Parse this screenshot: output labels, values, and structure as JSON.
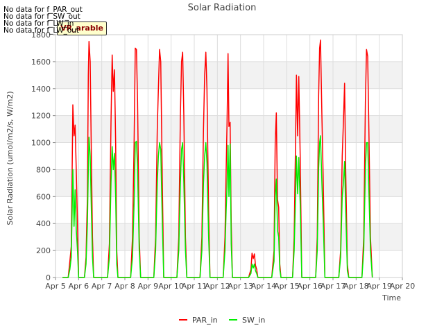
{
  "chart_data": {
    "type": "line",
    "title": "Solar Radiation",
    "xlabel": "Time",
    "ylabel": "Solar Radiation (umol/m2/s, W/m2)",
    "xlim": [
      5,
      20
    ],
    "ylim": [
      0,
      1800
    ],
    "x_ticks": [
      "Apr 5",
      "Apr 6",
      "Apr 7",
      "Apr 8",
      "Apr 9",
      "Apr 10",
      "Apr 11",
      "Apr 12",
      "Apr 13",
      "Apr 14",
      "Apr 15",
      "Apr 16",
      "Apr 17",
      "Apr 18",
      "Apr 19",
      "Apr 20"
    ],
    "y_ticks": [
      0,
      200,
      400,
      600,
      800,
      1000,
      1200,
      1400,
      1600,
      1800
    ],
    "grid": true,
    "legend_position": "bottom-center",
    "series": [
      {
        "name": "PAR_in",
        "color": "#ff0000",
        "points": [
          [
            5.3,
            0
          ],
          [
            5.55,
            0
          ],
          [
            5.62,
            120
          ],
          [
            5.68,
            230
          ],
          [
            5.72,
            800
          ],
          [
            5.75,
            1280
          ],
          [
            5.8,
            1050
          ],
          [
            5.85,
            1130
          ],
          [
            5.9,
            780
          ],
          [
            5.95,
            400
          ],
          [
            6.0,
            0
          ],
          [
            6.25,
            0
          ],
          [
            6.32,
            150
          ],
          [
            6.38,
            600
          ],
          [
            6.42,
            1500
          ],
          [
            6.45,
            1750
          ],
          [
            6.5,
            1600
          ],
          [
            6.55,
            900
          ],
          [
            6.6,
            300
          ],
          [
            6.65,
            0
          ],
          [
            7.25,
            0
          ],
          [
            7.33,
            250
          ],
          [
            7.4,
            1150
          ],
          [
            7.45,
            1650
          ],
          [
            7.5,
            1380
          ],
          [
            7.55,
            1540
          ],
          [
            7.6,
            1000
          ],
          [
            7.65,
            200
          ],
          [
            7.7,
            0
          ],
          [
            8.25,
            0
          ],
          [
            8.33,
            300
          ],
          [
            8.4,
            1000
          ],
          [
            8.45,
            1700
          ],
          [
            8.5,
            1690
          ],
          [
            8.55,
            1300
          ],
          [
            8.62,
            300
          ],
          [
            8.68,
            0
          ],
          [
            9.25,
            0
          ],
          [
            9.33,
            300
          ],
          [
            9.4,
            1100
          ],
          [
            9.45,
            1400
          ],
          [
            9.5,
            1690
          ],
          [
            9.55,
            1600
          ],
          [
            9.62,
            700
          ],
          [
            9.68,
            0
          ],
          [
            10.25,
            0
          ],
          [
            10.33,
            300
          ],
          [
            10.4,
            1200
          ],
          [
            10.45,
            1600
          ],
          [
            10.5,
            1670
          ],
          [
            10.55,
            1200
          ],
          [
            10.62,
            300
          ],
          [
            10.68,
            0
          ],
          [
            11.25,
            0
          ],
          [
            11.33,
            300
          ],
          [
            11.4,
            1100
          ],
          [
            11.45,
            1500
          ],
          [
            11.5,
            1670
          ],
          [
            11.55,
            1400
          ],
          [
            11.62,
            500
          ],
          [
            11.68,
            0
          ],
          [
            12.25,
            0
          ],
          [
            12.33,
            300
          ],
          [
            12.38,
            800
          ],
          [
            12.42,
            1150
          ],
          [
            12.46,
            1660
          ],
          [
            12.5,
            1120
          ],
          [
            12.55,
            1150
          ],
          [
            12.6,
            400
          ],
          [
            12.65,
            0
          ],
          [
            13.35,
            0
          ],
          [
            13.45,
            60
          ],
          [
            13.5,
            180
          ],
          [
            13.55,
            140
          ],
          [
            13.6,
            175
          ],
          [
            13.65,
            90
          ],
          [
            13.7,
            60
          ],
          [
            13.75,
            0
          ],
          [
            14.35,
            0
          ],
          [
            14.45,
            200
          ],
          [
            14.5,
            1000
          ],
          [
            14.55,
            1220
          ],
          [
            14.6,
            580
          ],
          [
            14.65,
            520
          ],
          [
            14.7,
            100
          ],
          [
            14.75,
            0
          ],
          [
            15.25,
            0
          ],
          [
            15.32,
            300
          ],
          [
            15.38,
            1000
          ],
          [
            15.42,
            1500
          ],
          [
            15.47,
            1050
          ],
          [
            15.52,
            1490
          ],
          [
            15.58,
            900
          ],
          [
            15.65,
            0
          ],
          [
            16.25,
            0
          ],
          [
            16.32,
            300
          ],
          [
            16.38,
            1350
          ],
          [
            16.42,
            1700
          ],
          [
            16.46,
            1760
          ],
          [
            16.52,
            1200
          ],
          [
            16.58,
            700
          ],
          [
            16.65,
            0
          ],
          [
            17.25,
            0
          ],
          [
            17.33,
            200
          ],
          [
            17.4,
            900
          ],
          [
            17.45,
            1150
          ],
          [
            17.5,
            1440
          ],
          [
            17.55,
            800
          ],
          [
            17.62,
            100
          ],
          [
            17.68,
            0
          ],
          [
            18.25,
            0
          ],
          [
            18.33,
            300
          ],
          [
            18.4,
            1300
          ],
          [
            18.45,
            1690
          ],
          [
            18.5,
            1640
          ],
          [
            18.55,
            1100
          ],
          [
            18.62,
            300
          ],
          [
            18.7,
            0
          ]
        ]
      },
      {
        "name": "SW_in",
        "color": "#00ee00",
        "points": [
          [
            5.3,
            0
          ],
          [
            5.55,
            0
          ],
          [
            5.62,
            60
          ],
          [
            5.68,
            150
          ],
          [
            5.72,
            500
          ],
          [
            5.75,
            800
          ],
          [
            5.8,
            380
          ],
          [
            5.85,
            650
          ],
          [
            5.9,
            350
          ],
          [
            5.95,
            200
          ],
          [
            6.0,
            0
          ],
          [
            6.25,
            0
          ],
          [
            6.32,
            100
          ],
          [
            6.38,
            400
          ],
          [
            6.42,
            800
          ],
          [
            6.45,
            1040
          ],
          [
            6.5,
            900
          ],
          [
            6.55,
            500
          ],
          [
            6.6,
            150
          ],
          [
            6.65,
            0
          ],
          [
            7.25,
            0
          ],
          [
            7.33,
            150
          ],
          [
            7.4,
            700
          ],
          [
            7.45,
            970
          ],
          [
            7.5,
            800
          ],
          [
            7.55,
            920
          ],
          [
            7.6,
            600
          ],
          [
            7.65,
            100
          ],
          [
            7.7,
            0
          ],
          [
            8.25,
            0
          ],
          [
            8.33,
            150
          ],
          [
            8.4,
            550
          ],
          [
            8.45,
            1000
          ],
          [
            8.5,
            1010
          ],
          [
            8.55,
            800
          ],
          [
            8.62,
            200
          ],
          [
            8.68,
            0
          ],
          [
            9.25,
            0
          ],
          [
            9.33,
            200
          ],
          [
            9.4,
            700
          ],
          [
            9.45,
            900
          ],
          [
            9.5,
            1000
          ],
          [
            9.55,
            950
          ],
          [
            9.62,
            400
          ],
          [
            9.68,
            0
          ],
          [
            10.25,
            0
          ],
          [
            10.33,
            200
          ],
          [
            10.4,
            700
          ],
          [
            10.45,
            950
          ],
          [
            10.5,
            1000
          ],
          [
            10.55,
            700
          ],
          [
            10.62,
            200
          ],
          [
            10.68,
            0
          ],
          [
            11.25,
            0
          ],
          [
            11.33,
            200
          ],
          [
            11.4,
            700
          ],
          [
            11.45,
            900
          ],
          [
            11.5,
            1000
          ],
          [
            11.55,
            850
          ],
          [
            11.62,
            300
          ],
          [
            11.68,
            0
          ],
          [
            12.25,
            0
          ],
          [
            12.33,
            200
          ],
          [
            12.38,
            500
          ],
          [
            12.42,
            680
          ],
          [
            12.46,
            980
          ],
          [
            12.5,
            600
          ],
          [
            12.55,
            990
          ],
          [
            12.6,
            250
          ],
          [
            12.65,
            0
          ],
          [
            13.35,
            0
          ],
          [
            13.45,
            30
          ],
          [
            13.5,
            100
          ],
          [
            13.55,
            70
          ],
          [
            13.6,
            100
          ],
          [
            13.65,
            50
          ],
          [
            13.7,
            30
          ],
          [
            13.75,
            0
          ],
          [
            14.35,
            0
          ],
          [
            14.45,
            120
          ],
          [
            14.5,
            600
          ],
          [
            14.55,
            730
          ],
          [
            14.6,
            350
          ],
          [
            14.65,
            300
          ],
          [
            14.7,
            60
          ],
          [
            14.75,
            0
          ],
          [
            15.25,
            0
          ],
          [
            15.32,
            200
          ],
          [
            15.38,
            600
          ],
          [
            15.42,
            900
          ],
          [
            15.47,
            620
          ],
          [
            15.52,
            890
          ],
          [
            15.58,
            550
          ],
          [
            15.65,
            0
          ],
          [
            16.25,
            0
          ],
          [
            16.32,
            200
          ],
          [
            16.38,
            800
          ],
          [
            16.42,
            1000
          ],
          [
            16.46,
            1050
          ],
          [
            16.52,
            700
          ],
          [
            16.58,
            400
          ],
          [
            16.65,
            0
          ],
          [
            17.25,
            0
          ],
          [
            17.33,
            150
          ],
          [
            17.4,
            600
          ],
          [
            17.45,
            700
          ],
          [
            17.5,
            860
          ],
          [
            17.55,
            500
          ],
          [
            17.62,
            50
          ],
          [
            17.68,
            0
          ],
          [
            18.25,
            0
          ],
          [
            18.33,
            200
          ],
          [
            18.4,
            800
          ],
          [
            18.45,
            1000
          ],
          [
            18.5,
            1000
          ],
          [
            18.55,
            650
          ],
          [
            18.62,
            200
          ],
          [
            18.7,
            0
          ]
        ]
      }
    ]
  },
  "messages": [
    "No data for f_PAR_out",
    "No data for f_SW_out",
    "No data for f_LW_in",
    "No data for f_LW_out"
  ],
  "badge": "VR_arable"
}
